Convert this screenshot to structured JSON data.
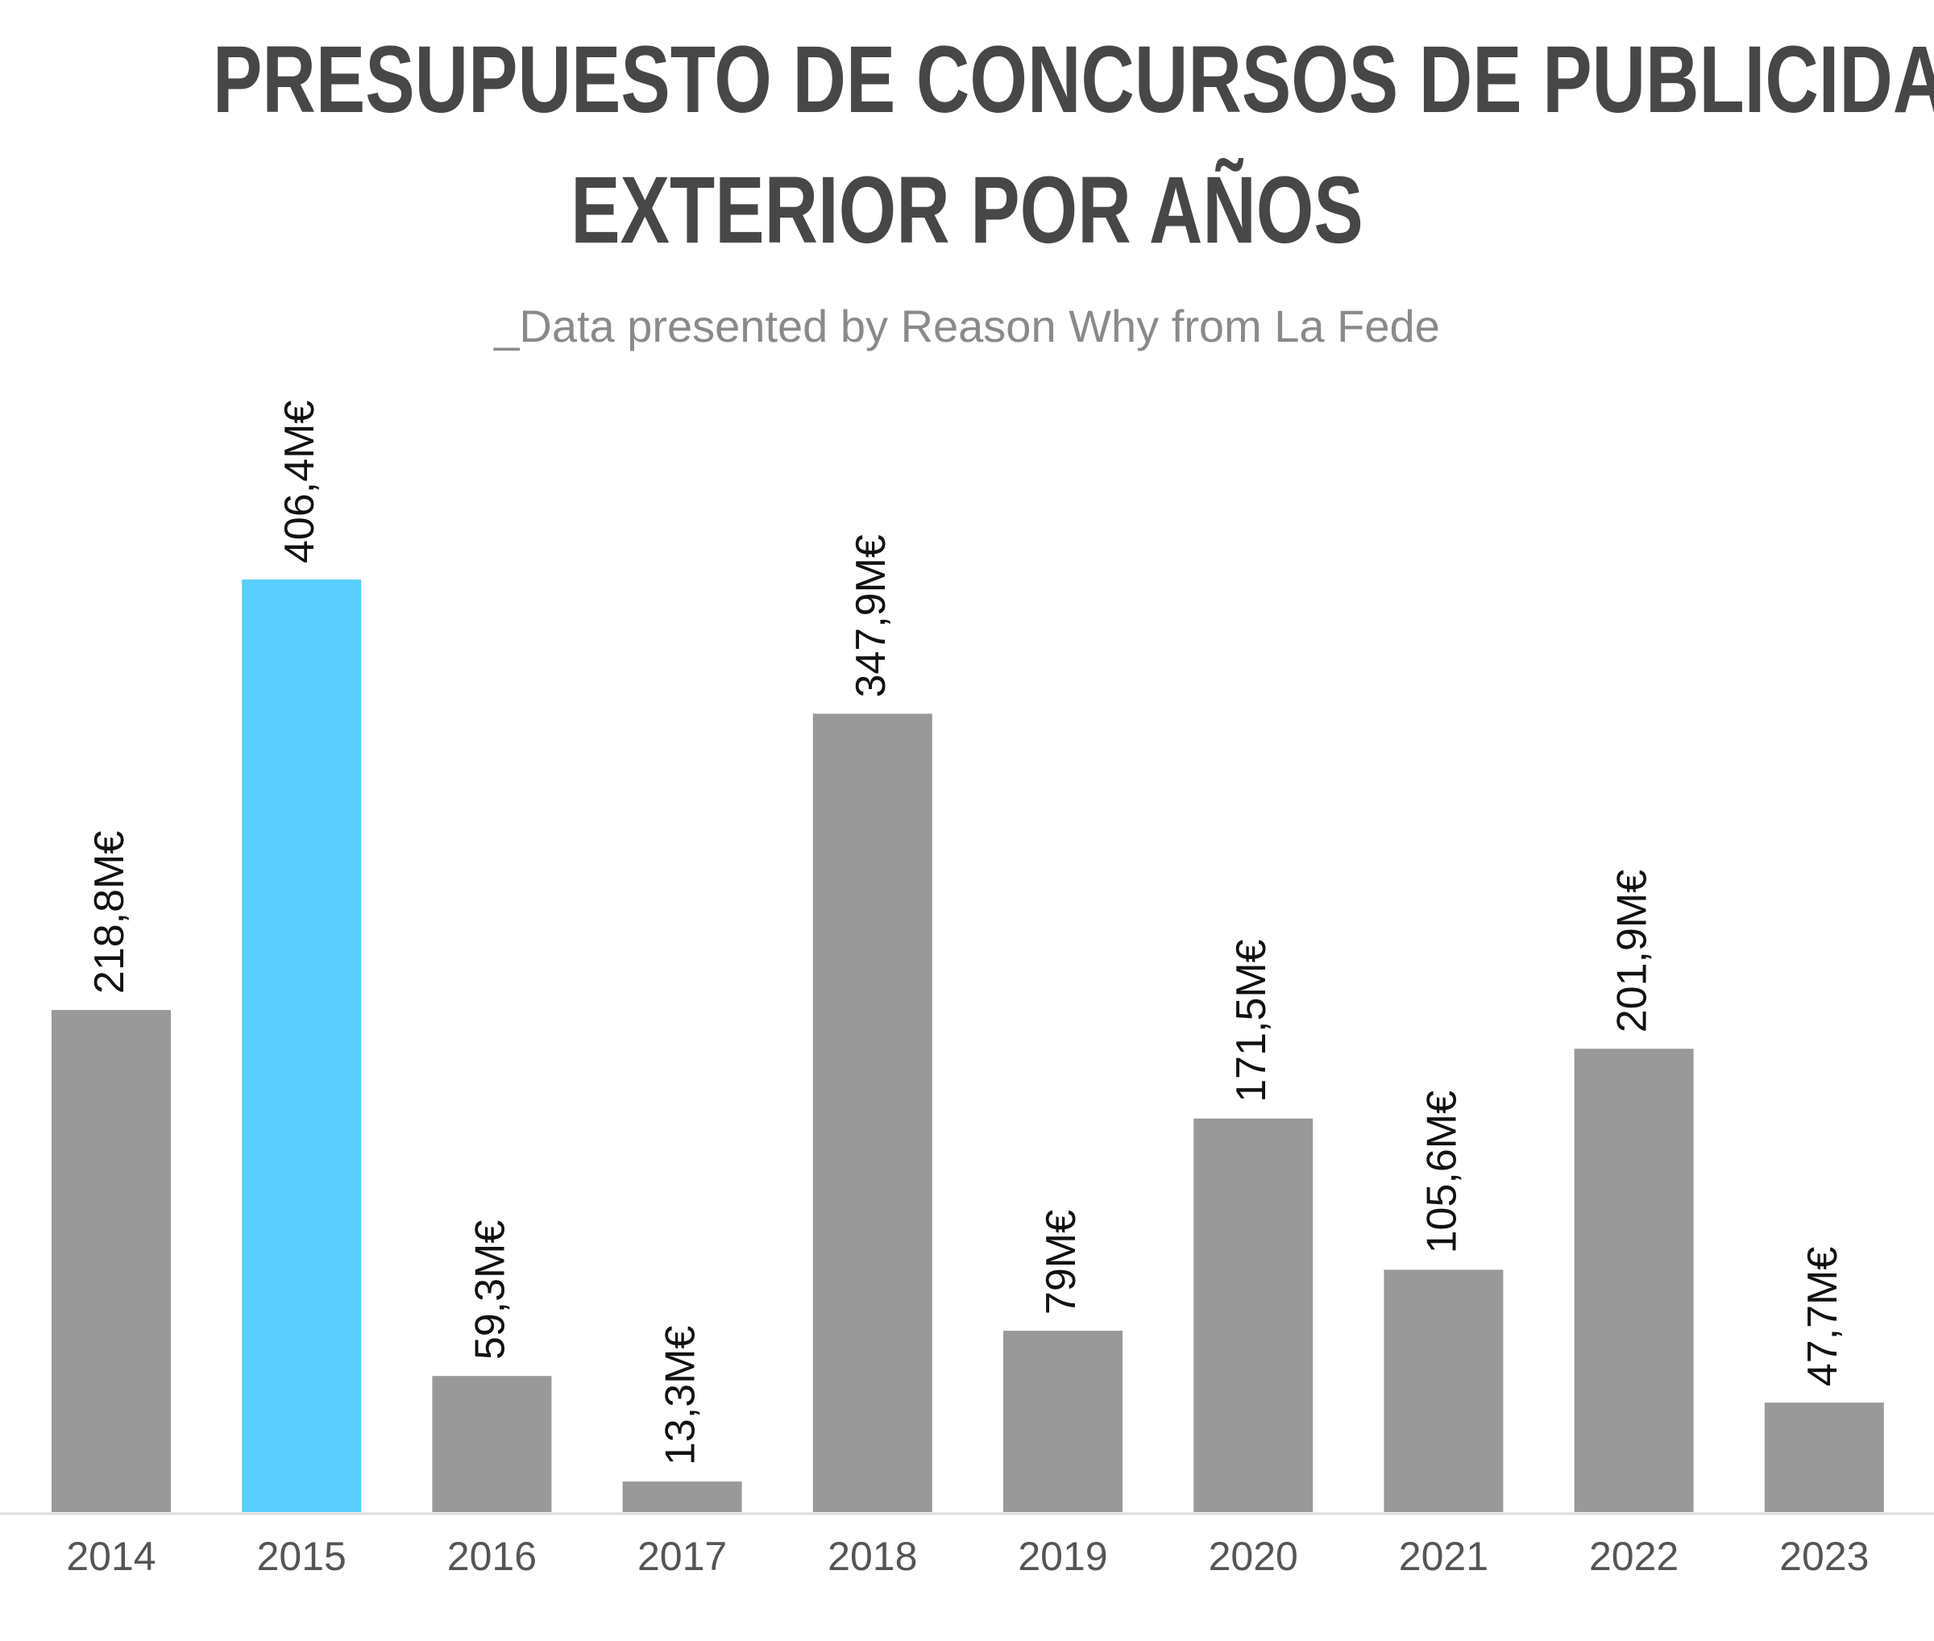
{
  "header": {
    "title_line1": "PRESUPUESTO DE CONCURSOS DE PUBLICIDAD",
    "title_line2": "EXTERIOR POR AÑOS",
    "subtitle": "_Data presented by Reason Why from La Fede"
  },
  "chart_data": {
    "type": "bar",
    "title": "PRESUPUESTO DE CONCURSOS DE PUBLICIDAD EXTERIOR POR AÑOS",
    "subtitle": "_Data presented by Reason Why from La Fede",
    "categories": [
      "2014",
      "2015",
      "2016",
      "2017",
      "2018",
      "2019",
      "2020",
      "2021",
      "2022",
      "2023"
    ],
    "values": [
      218.8,
      406.4,
      59.3,
      13.3,
      347.9,
      79,
      171.5,
      105.6,
      201.9,
      47.7
    ],
    "value_labels": [
      "218,8M€",
      "406,4M€",
      "59,3M€",
      "13,3M€",
      "347,9M€",
      "79M€",
      "171,5M€",
      "105,6M€",
      "201,9M€",
      "47,7M€"
    ],
    "highlight_index": 1,
    "colors": {
      "bar": "#999999",
      "highlight": "#5acefc",
      "axis": "#dddddd",
      "label": "#111111",
      "tick": "#555555"
    },
    "ylim": [
      0,
      406.4
    ],
    "grid": false,
    "legend": "none"
  }
}
